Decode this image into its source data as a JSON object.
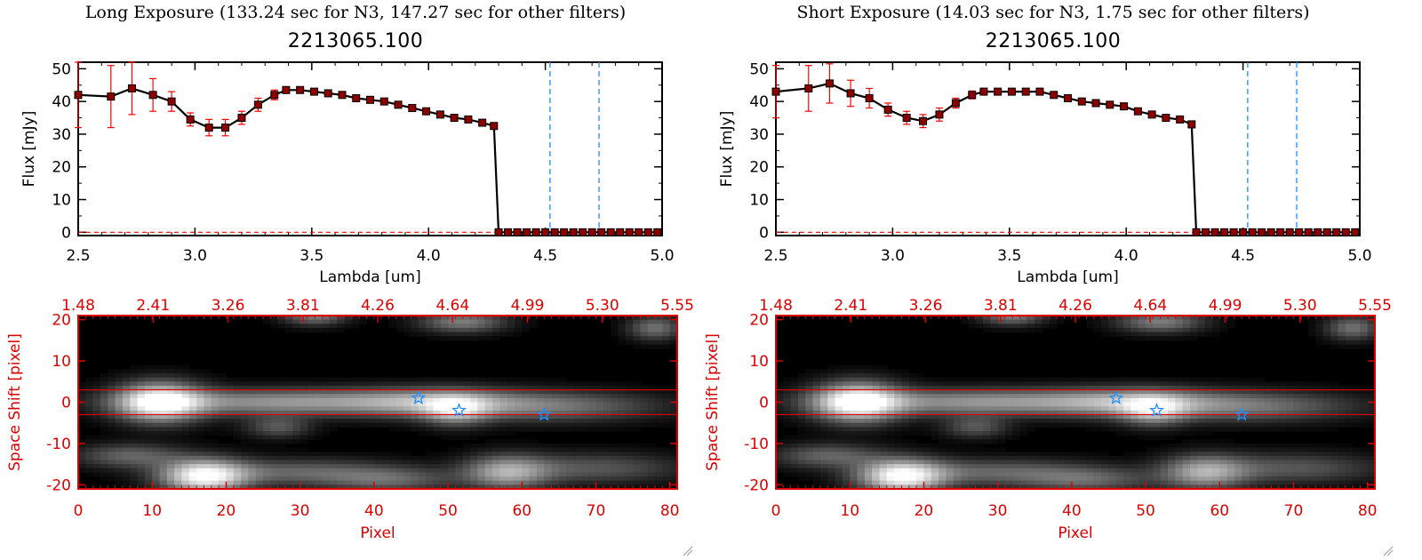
{
  "colors": {
    "spectrum_line": "#000000",
    "spectrum_marker": "#8b0000",
    "error_bar": "#ff0000",
    "filter_marker": "#1e90ff",
    "image_frame": "#dd0000",
    "star_marker": "#1e90ff"
  },
  "panels": [
    {
      "header": "Long Exposure (133.24 sec for N3, 147.27 sec for other filters)",
      "object_id": "2213065.100"
    },
    {
      "header": "Short Exposure (14.03 sec for N3, 1.75 sec for other filters)",
      "object_id": "2213065.100"
    }
  ],
  "chart_data": [
    {
      "type": "line",
      "title": "2213065.100",
      "xlabel": "Lambda [um]",
      "ylabel": "Flux [mJy]",
      "xlim": [
        2.5,
        5.0
      ],
      "ylim": [
        -1,
        52
      ],
      "xticks": [
        "2.5",
        "3.0",
        "3.5",
        "4.0",
        "4.5",
        "5.0"
      ],
      "yticks": [
        "0",
        "10",
        "20",
        "30",
        "40",
        "50"
      ],
      "x": [
        2.5,
        2.64,
        2.73,
        2.82,
        2.9,
        2.98,
        3.06,
        3.13,
        3.2,
        3.27,
        3.34,
        3.39,
        3.45,
        3.51,
        3.57,
        3.63,
        3.69,
        3.75,
        3.81,
        3.87,
        3.93,
        3.99,
        4.05,
        4.11,
        4.17,
        4.23,
        4.28,
        4.3,
        4.34,
        4.38,
        4.42,
        4.46,
        4.5,
        4.54,
        4.58,
        4.62,
        4.66,
        4.7,
        4.74,
        4.78,
        4.82,
        4.86,
        4.9,
        4.94,
        4.98
      ],
      "y": [
        42,
        41.5,
        44,
        42,
        40,
        34.5,
        32,
        32,
        35,
        39,
        42,
        43.5,
        43.5,
        43,
        42.5,
        42,
        41,
        40.5,
        40,
        39,
        38,
        37,
        36,
        35,
        34.5,
        33.5,
        32.5,
        0,
        0,
        0,
        0,
        0,
        0,
        0,
        0,
        0,
        0,
        0,
        0,
        0,
        0,
        0,
        0,
        0,
        0
      ],
      "yerr": [
        10,
        9.5,
        8,
        5,
        3,
        2,
        2.5,
        2.5,
        2,
        2,
        1.5,
        1,
        0.8,
        0.8,
        0.8,
        0.5,
        0.5,
        0.5,
        0.5,
        0.5,
        0.5,
        0.5,
        0.5,
        0.5,
        0.5,
        0.5,
        1,
        0,
        0,
        0,
        0,
        0,
        0,
        0,
        0,
        0,
        0,
        0,
        0,
        0,
        0,
        0,
        0,
        0,
        0
      ],
      "filter_lines_x": [
        4.52,
        4.73
      ],
      "zero_line": true
    },
    {
      "type": "heatmap",
      "xlabel": "Pixel",
      "ylabel": "Space Shift [pixel]",
      "xlim": [
        0,
        81
      ],
      "ylim": [
        -21,
        21
      ],
      "xticks": [
        "0",
        "10",
        "20",
        "30",
        "40",
        "50",
        "60",
        "70",
        "80"
      ],
      "yticks": [
        "20",
        "10",
        "0",
        "-10",
        "-20"
      ],
      "top_axis_ticks": [
        "1.48",
        "2.41",
        "3.26",
        "3.81",
        "4.26",
        "4.64",
        "4.99",
        "5.30",
        "5.55"
      ],
      "aperture_lines_y": [
        3,
        -3
      ],
      "star_markers": [
        {
          "x": 46,
          "y": 1
        },
        {
          "x": 51.5,
          "y": -2
        },
        {
          "x": 63,
          "y": -3
        }
      ]
    },
    {
      "type": "line",
      "title": "2213065.100",
      "xlabel": "Lambda [um]",
      "ylabel": "Flux [mJy]",
      "xlim": [
        2.5,
        5.0
      ],
      "ylim": [
        -1,
        52
      ],
      "xticks": [
        "2.5",
        "3.0",
        "3.5",
        "4.0",
        "4.5",
        "5.0"
      ],
      "yticks": [
        "0",
        "10",
        "20",
        "30",
        "40",
        "50"
      ],
      "x": [
        2.5,
        2.64,
        2.73,
        2.82,
        2.9,
        2.98,
        3.06,
        3.13,
        3.2,
        3.27,
        3.34,
        3.39,
        3.45,
        3.51,
        3.57,
        3.63,
        3.69,
        3.75,
        3.81,
        3.87,
        3.93,
        3.99,
        4.05,
        4.11,
        4.17,
        4.23,
        4.28,
        4.3,
        4.34,
        4.38,
        4.42,
        4.46,
        4.5,
        4.54,
        4.58,
        4.62,
        4.66,
        4.7,
        4.74,
        4.78,
        4.82,
        4.86,
        4.9,
        4.94,
        4.98
      ],
      "y": [
        43,
        44,
        45.5,
        42.5,
        41,
        37.5,
        35,
        34,
        36,
        39.5,
        42,
        43,
        43,
        43,
        43,
        43,
        42,
        41,
        40,
        39.5,
        39,
        38.5,
        37,
        36,
        35,
        34.5,
        33,
        0,
        0,
        0,
        0,
        0,
        0,
        0,
        0,
        0,
        0,
        0,
        0,
        0,
        0,
        0,
        0,
        0,
        0
      ],
      "yerr": [
        8,
        7,
        6,
        4,
        3,
        2,
        2,
        2,
        2,
        1.5,
        1.2,
        1,
        0.8,
        0.8,
        0.8,
        0.5,
        0.5,
        0.5,
        0.5,
        0.5,
        0.5,
        0.5,
        0.5,
        0.5,
        0.5,
        0.5,
        1,
        0,
        0,
        0,
        0,
        0,
        0,
        0,
        0,
        0,
        0,
        0,
        0,
        0,
        0,
        0,
        0,
        0,
        0
      ],
      "filter_lines_x": [
        4.52,
        4.73
      ],
      "zero_line": true
    },
    {
      "type": "heatmap",
      "xlabel": "Pixel",
      "ylabel": "Space Shift [pixel]",
      "xlim": [
        0,
        81
      ],
      "ylim": [
        -21,
        21
      ],
      "xticks": [
        "0",
        "10",
        "20",
        "30",
        "40",
        "50",
        "60",
        "70",
        "80"
      ],
      "yticks": [
        "20",
        "10",
        "0",
        "-10",
        "-20"
      ],
      "top_axis_ticks": [
        "1.48",
        "2.41",
        "3.26",
        "3.81",
        "4.26",
        "4.64",
        "4.99",
        "5.30",
        "5.55"
      ],
      "aperture_lines_y": [
        3,
        -3
      ],
      "star_markers": [
        {
          "x": 46,
          "y": 1
        },
        {
          "x": 51.5,
          "y": -2
        },
        {
          "x": 63,
          "y": -3
        }
      ]
    }
  ]
}
